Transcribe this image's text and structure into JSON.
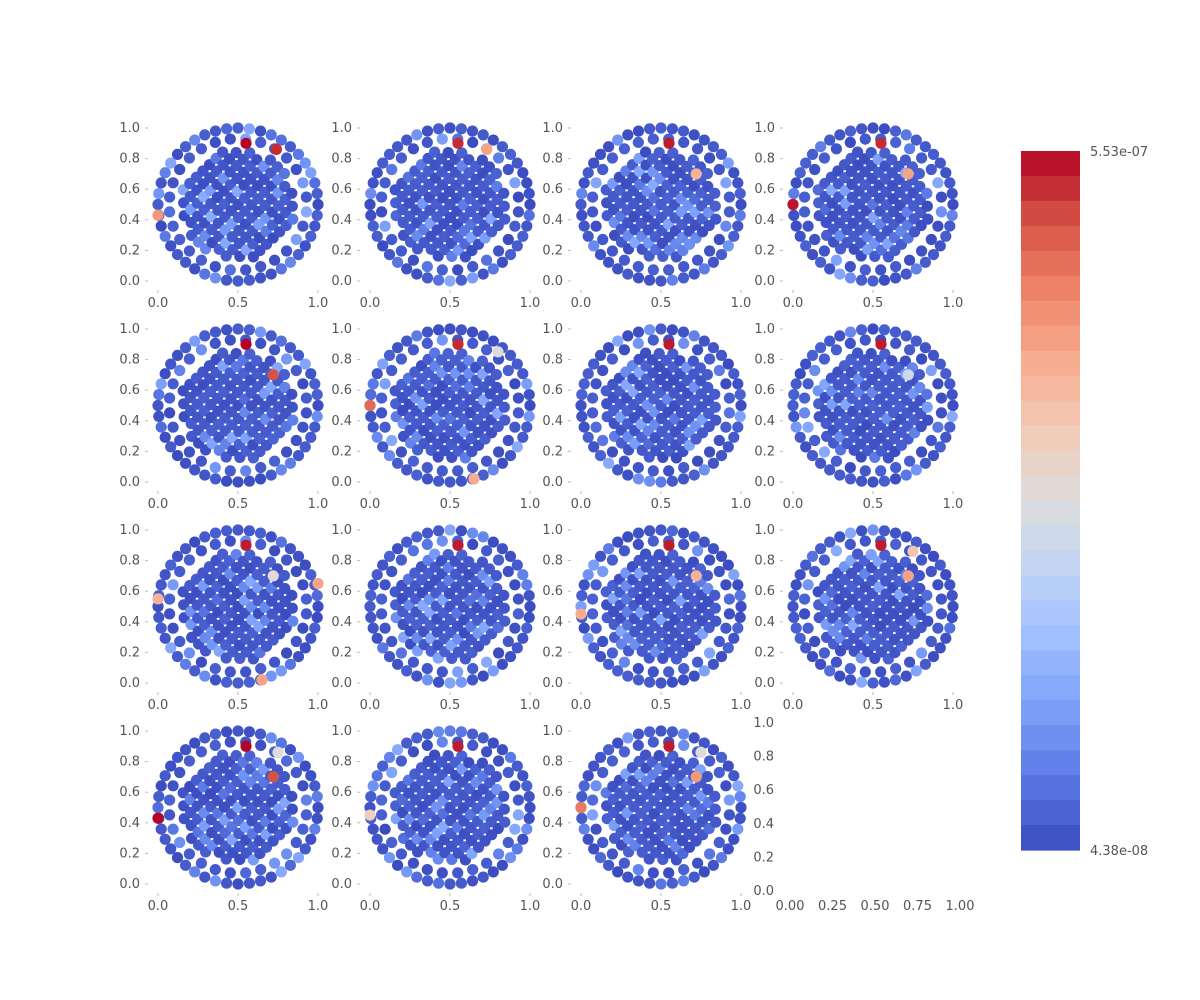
{
  "chart_data": {
    "type": "scatter",
    "layout": "4x4 grid of small multiples; last panel empty",
    "colormap": [
      "#3b4cc0",
      "#5a78e4",
      "#7b9ff9",
      "#9ebeff",
      "#c0d4f5",
      "#dddcdc",
      "#f2cbb7",
      "#f7ac8e",
      "#ee8468",
      "#d65244",
      "#b40426"
    ],
    "color_min_label": "4.38e-08",
    "color_max_label": "5.53e-07",
    "xlim": [
      0,
      1
    ],
    "ylim": [
      0,
      1
    ],
    "xticks": [
      "0.0",
      "0.5",
      "1.0"
    ],
    "yticks": [
      "0.0",
      "0.2",
      "0.4",
      "0.6",
      "0.8",
      "1.0"
    ],
    "empty_panel_xticks": [
      "0.00",
      "0.25",
      "0.50",
      "0.75",
      "1.00"
    ],
    "empty_panel_yticks": [
      "0.0",
      "0.2",
      "0.4",
      "0.6",
      "0.8",
      "1.0"
    ],
    "grid": false,
    "point_set": "points on a unit disk centered at (0.5, 0.5): a ring of points on the boundary plus interior points on diagonal lines",
    "panels": [
      {
        "hot": [
          [
            0.55,
            0.9,
            1.0
          ],
          [
            0.74,
            0.86,
            0.95
          ],
          [
            0.0,
            0.43,
            0.75
          ]
        ]
      },
      {
        "hot": [
          [
            0.55,
            0.9,
            0.95
          ],
          [
            0.73,
            0.86,
            0.72
          ]
        ]
      },
      {
        "hot": [
          [
            0.55,
            0.9,
            0.97
          ],
          [
            0.72,
            0.7,
            0.68
          ]
        ]
      },
      {
        "hot": [
          [
            0.55,
            0.9,
            0.95
          ],
          [
            0.72,
            0.7,
            0.72
          ],
          [
            0.0,
            0.5,
            0.98
          ]
        ]
      },
      {
        "hot": [
          [
            0.55,
            0.9,
            1.0
          ],
          [
            0.72,
            0.7,
            0.9
          ]
        ]
      },
      {
        "hot": [
          [
            0.55,
            0.9,
            0.95
          ],
          [
            0.0,
            0.5,
            0.85
          ],
          [
            0.65,
            0.02,
            0.7
          ],
          [
            0.8,
            0.85,
            0.5
          ]
        ]
      },
      {
        "hot": [
          [
            0.55,
            0.9,
            0.97
          ]
        ]
      },
      {
        "hot": [
          [
            0.55,
            0.9,
            0.97
          ],
          [
            0.72,
            0.7,
            0.45
          ]
        ]
      },
      {
        "hot": [
          [
            0.55,
            0.9,
            0.97
          ],
          [
            1.0,
            0.65,
            0.72
          ],
          [
            0.65,
            0.02,
            0.72
          ],
          [
            0.0,
            0.55,
            0.68
          ],
          [
            0.72,
            0.7,
            0.52
          ]
        ]
      },
      {
        "hot": [
          [
            0.55,
            0.9,
            0.97
          ]
        ]
      },
      {
        "hot": [
          [
            0.55,
            0.9,
            0.97
          ],
          [
            0.72,
            0.7,
            0.68
          ],
          [
            0.0,
            0.45,
            0.7
          ]
        ]
      },
      {
        "hot": [
          [
            0.55,
            0.9,
            0.97
          ],
          [
            0.72,
            0.7,
            0.72
          ],
          [
            0.75,
            0.86,
            0.62
          ]
        ]
      },
      {
        "hot": [
          [
            0.55,
            0.9,
            1.0
          ],
          [
            0.72,
            0.7,
            0.9
          ],
          [
            0.0,
            0.43,
            1.0
          ],
          [
            0.75,
            0.86,
            0.5
          ]
        ]
      },
      {
        "hot": [
          [
            0.55,
            0.9,
            0.97
          ],
          [
            0.0,
            0.45,
            0.58
          ]
        ]
      },
      {
        "hot": [
          [
            0.55,
            0.9,
            0.97
          ],
          [
            0.72,
            0.7,
            0.75
          ],
          [
            0.0,
            0.5,
            0.82
          ],
          [
            0.75,
            0.86,
            0.5
          ]
        ]
      }
    ]
  }
}
